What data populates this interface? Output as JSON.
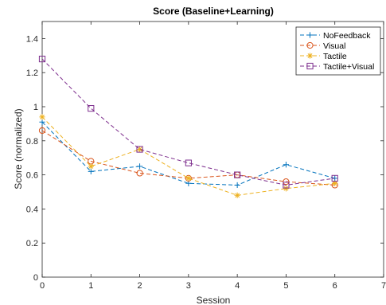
{
  "chart_data": {
    "type": "line",
    "title": "Score (Baseline+Learning)",
    "xlabel": "Session",
    "ylabel": "Score (normalized)",
    "xlim": [
      0,
      7
    ],
    "ylim": [
      0,
      1.5
    ],
    "xticks": [
      "0",
      "1",
      "2",
      "3",
      "4",
      "5",
      "6",
      "7"
    ],
    "yticks": [
      "0",
      "0.2",
      "0.4",
      "0.6",
      "0.8",
      "1",
      "1.2",
      "1.4"
    ],
    "grid": false,
    "legend_position": "top-right",
    "x": [
      0,
      1,
      2,
      3,
      4,
      5,
      6
    ],
    "series": [
      {
        "name": "NoFeedback",
        "color": "#0072BD",
        "marker": "plus",
        "values": [
          0.91,
          0.62,
          0.65,
          0.55,
          0.54,
          0.66,
          0.58
        ]
      },
      {
        "name": "Visual",
        "color": "#D95319",
        "marker": "circle",
        "values": [
          0.86,
          0.68,
          0.61,
          0.58,
          0.6,
          0.56,
          0.54
        ]
      },
      {
        "name": "Tactile",
        "color": "#EDB120",
        "marker": "star",
        "values": [
          0.94,
          0.65,
          0.75,
          0.58,
          0.48,
          0.52,
          0.55
        ]
      },
      {
        "name": "Tactile+Visual",
        "color": "#7E2F8E",
        "marker": "square",
        "values": [
          1.28,
          0.99,
          0.75,
          0.67,
          0.6,
          0.54,
          0.58
        ]
      }
    ]
  }
}
